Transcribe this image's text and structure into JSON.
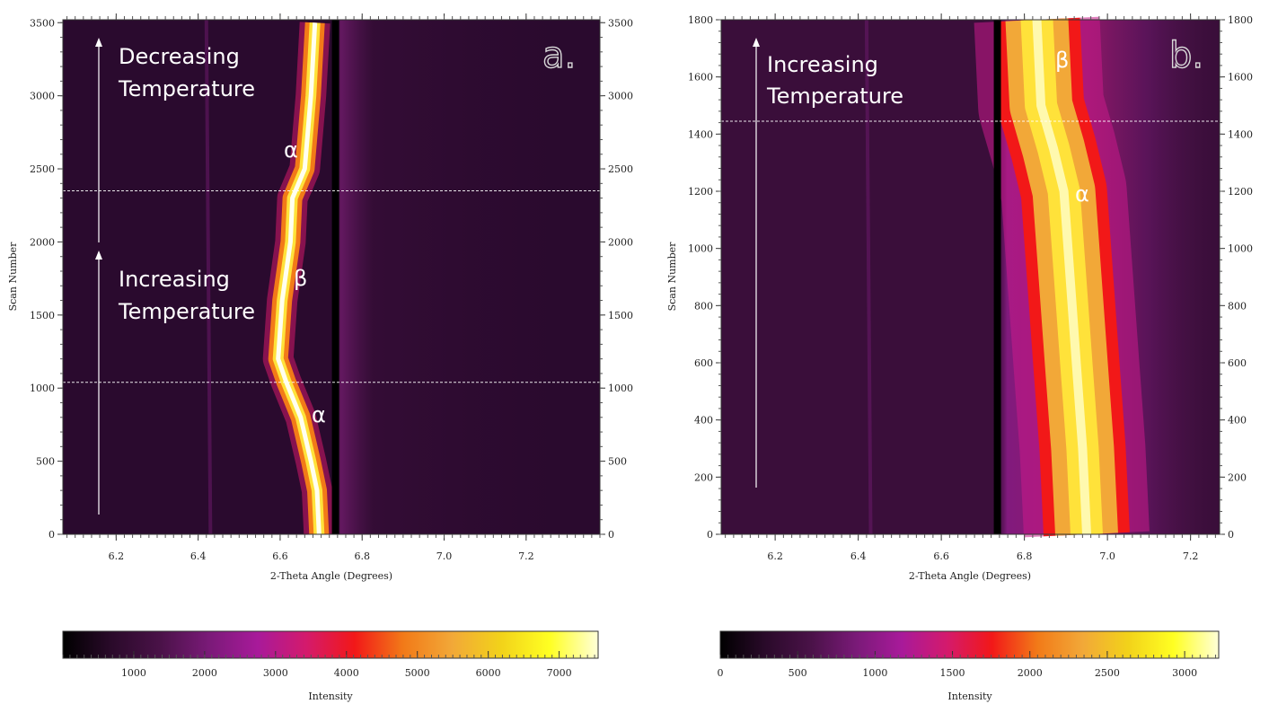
{
  "chart_data": [
    {
      "type": "heatmap",
      "panel_label": "a.",
      "xlabel": "2-Theta Angle (Degrees)",
      "ylabel": "Scan Number",
      "xlim": [
        6.07,
        7.38
      ],
      "ylim": [
        0,
        3520
      ],
      "x_ticks": [
        "6.2",
        "6.4",
        "6.6",
        "6.8",
        "7.0",
        "7.2"
      ],
      "y_ticks": [
        "0",
        "500",
        "1000",
        "1500",
        "2000",
        "2500",
        "3000",
        "3500"
      ],
      "right_y_ticks": [
        "0",
        "500",
        "1000",
        "1500",
        "2000",
        "2500",
        "3000",
        "3500"
      ],
      "colorbar": {
        "label": "Intensity",
        "range": [
          0,
          7550
        ],
        "ticks": [
          "1000",
          "2000",
          "3000",
          "4000",
          "5000",
          "6000",
          "7000"
        ],
        "colormap": [
          "#000000",
          "#2a0a2a",
          "#4a1248",
          "#7a1a78",
          "#a81a9a",
          "#d41a6c",
          "#f21818",
          "#f27a18",
          "#f2a838",
          "#f2d21a",
          "#ffff22",
          "#ffffd8"
        ]
      },
      "background_color": "#2a0a2e",
      "dark_line_x": 6.735,
      "dashed_lines_scan": [
        1040,
        2350
      ],
      "peak_trace": [
        {
          "scan": 0,
          "two_theta": 6.695
        },
        {
          "scan": 300,
          "two_theta": 6.69
        },
        {
          "scan": 500,
          "two_theta": 6.675
        },
        {
          "scan": 800,
          "two_theta": 6.65
        },
        {
          "scan": 1040,
          "two_theta": 6.615
        },
        {
          "scan": 1200,
          "two_theta": 6.595
        },
        {
          "scan": 1600,
          "two_theta": 6.605
        },
        {
          "scan": 2000,
          "two_theta": 6.625
        },
        {
          "scan": 2300,
          "two_theta": 6.63
        },
        {
          "scan": 2500,
          "two_theta": 6.66
        },
        {
          "scan": 3000,
          "two_theta": 6.675
        },
        {
          "scan": 3500,
          "two_theta": 6.685
        }
      ],
      "annotations": {
        "arrow_upper_text": [
          "Decreasing",
          "Temperature"
        ],
        "arrow_lower_text": [
          "Increasing",
          "Temperature"
        ],
        "phase_top": "α",
        "phase_mid": "β",
        "phase_bottom": "α"
      }
    },
    {
      "type": "heatmap",
      "panel_label": "b.",
      "xlabel": "2-Theta Angle (Degrees)",
      "ylabel": "Scan Number",
      "xlim": [
        6.07,
        7.27
      ],
      "ylim": [
        0,
        1800
      ],
      "x_ticks": [
        "6.2",
        "6.4",
        "6.6",
        "6.8",
        "7.0",
        "7.2"
      ],
      "y_ticks": [
        "0",
        "200",
        "400",
        "600",
        "800",
        "1000",
        "1200",
        "1400",
        "1600",
        "1800"
      ],
      "right_y_ticks": [
        "0",
        "200",
        "400",
        "600",
        "800",
        "1000",
        "1200",
        "1400",
        "1600",
        "1800"
      ],
      "colorbar": {
        "label": "Intensity",
        "range": [
          0,
          3220
        ],
        "ticks": [
          "0",
          "500",
          "1000",
          "1500",
          "2000",
          "2500",
          "3000"
        ],
        "colormap": [
          "#000000",
          "#2a0a2a",
          "#4a1248",
          "#7a1a78",
          "#a81a9a",
          "#d41a6c",
          "#f21818",
          "#f27a18",
          "#f2a838",
          "#f2d21a",
          "#ffff22",
          "#ffffd8"
        ]
      },
      "background_color": "#3a0e3a",
      "dark_line_x": 6.735,
      "dashed_lines_scan": [
        1445
      ],
      "peak_trace": [
        {
          "scan": 0,
          "two_theta": 6.95
        },
        {
          "scan": 300,
          "two_theta": 6.94
        },
        {
          "scan": 600,
          "two_theta": 6.925
        },
        {
          "scan": 900,
          "two_theta": 6.91
        },
        {
          "scan": 1200,
          "two_theta": 6.895
        },
        {
          "scan": 1350,
          "two_theta": 6.87
        },
        {
          "scan": 1500,
          "two_theta": 6.84
        },
        {
          "scan": 1800,
          "two_theta": 6.83
        }
      ],
      "annotations": {
        "arrow_text": [
          "Increasing",
          "Temperature"
        ],
        "phase_top": "β",
        "phase_mid": "α"
      }
    }
  ]
}
